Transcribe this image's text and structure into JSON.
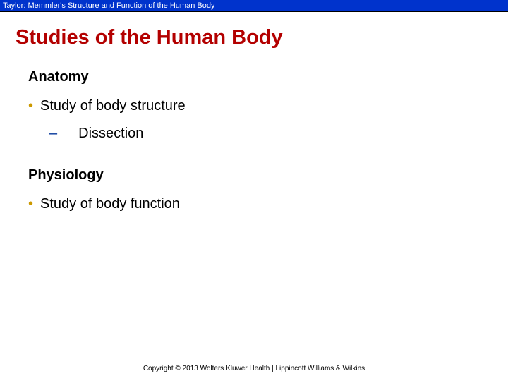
{
  "header": {
    "text": "Taylor: Memmler's Structure and Function of the Human Body"
  },
  "slide": {
    "title": "Studies of the Human Body"
  },
  "sections": [
    {
      "heading": "Anatomy",
      "bullets": [
        {
          "text": "Study of body structure",
          "sub_bullets": [
            {
              "text": "Dissection"
            }
          ]
        }
      ]
    },
    {
      "heading": "Physiology",
      "bullets": [
        {
          "text": "Study of body function",
          "sub_bullets": []
        }
      ]
    }
  ],
  "footer": {
    "text": "Copyright © 2013 Wolters Kluwer Health | Lippincott Williams & Wilkins"
  },
  "styling": {
    "header_bg": "#0033cc",
    "header_text_color": "#ffffff",
    "title_color": "#b30000",
    "bullet_marker_color": "#cc9900",
    "dash_marker_color": "#003399",
    "body_text_color": "#000000",
    "background_color": "#ffffff",
    "title_fontsize": 29,
    "heading_fontsize": 20,
    "body_fontsize": 20,
    "footer_fontsize": 10
  }
}
